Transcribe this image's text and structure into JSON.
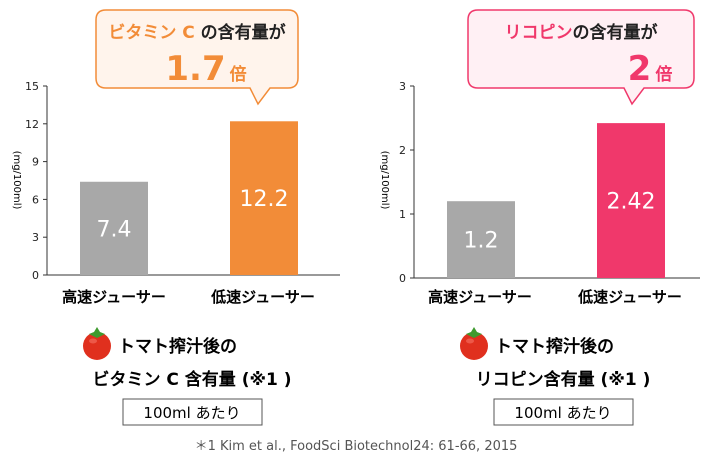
{
  "colors": {
    "vitc_accent": "#F28C38",
    "lyc_accent": "#F0386B",
    "gray_bar": "#A8A8A8",
    "bubble_fill": "#FFF4EC",
    "bubble_fill_pink": "#FFF0F4",
    "text_dark": "#222222"
  },
  "charts": [
    {
      "bubble": {
        "prefix": "ビタミン C",
        "suffix": " の含有量が",
        "multiplier": "1.7",
        "unit": "倍"
      },
      "caption_line1": "トマト搾汁後の",
      "caption_line2": "ビタミン C 含有量 (※1 )",
      "unit_box": "100ml あたり"
    },
    {
      "bubble": {
        "prefix": "リコピン",
        "suffix": "の含有量が",
        "multiplier": "2",
        "unit": "倍"
      },
      "caption_line1": "トマト搾汁後の",
      "caption_line2": "リコピン含有量 (※1 )",
      "unit_box": "100ml あたり"
    }
  ],
  "chart_data": [
    {
      "type": "bar",
      "categories": [
        "高速ジューサー",
        "低速ジューサー"
      ],
      "values": [
        7.4,
        12.2
      ],
      "value_labels": [
        "7.4",
        "12.2"
      ],
      "ylabel": "(mg/100ml)",
      "ylim": [
        0,
        15
      ],
      "yticks": [
        0,
        3,
        6,
        9,
        12,
        15
      ],
      "colors": [
        "#A8A8A8",
        "#F28C38"
      ]
    },
    {
      "type": "bar",
      "categories": [
        "高速ジューサー",
        "低速ジューサー"
      ],
      "values": [
        1.2,
        2.42
      ],
      "value_labels": [
        "1.2",
        "2.42"
      ],
      "ylabel": "(mg/100ml)",
      "ylim": [
        0,
        3
      ],
      "yticks": [
        0,
        1,
        2,
        3
      ],
      "colors": [
        "#A8A8A8",
        "#F0386B"
      ]
    }
  ],
  "footnote": "＊1 Kim et al., FoodSci Biotechnol24: 61-66, 2015"
}
